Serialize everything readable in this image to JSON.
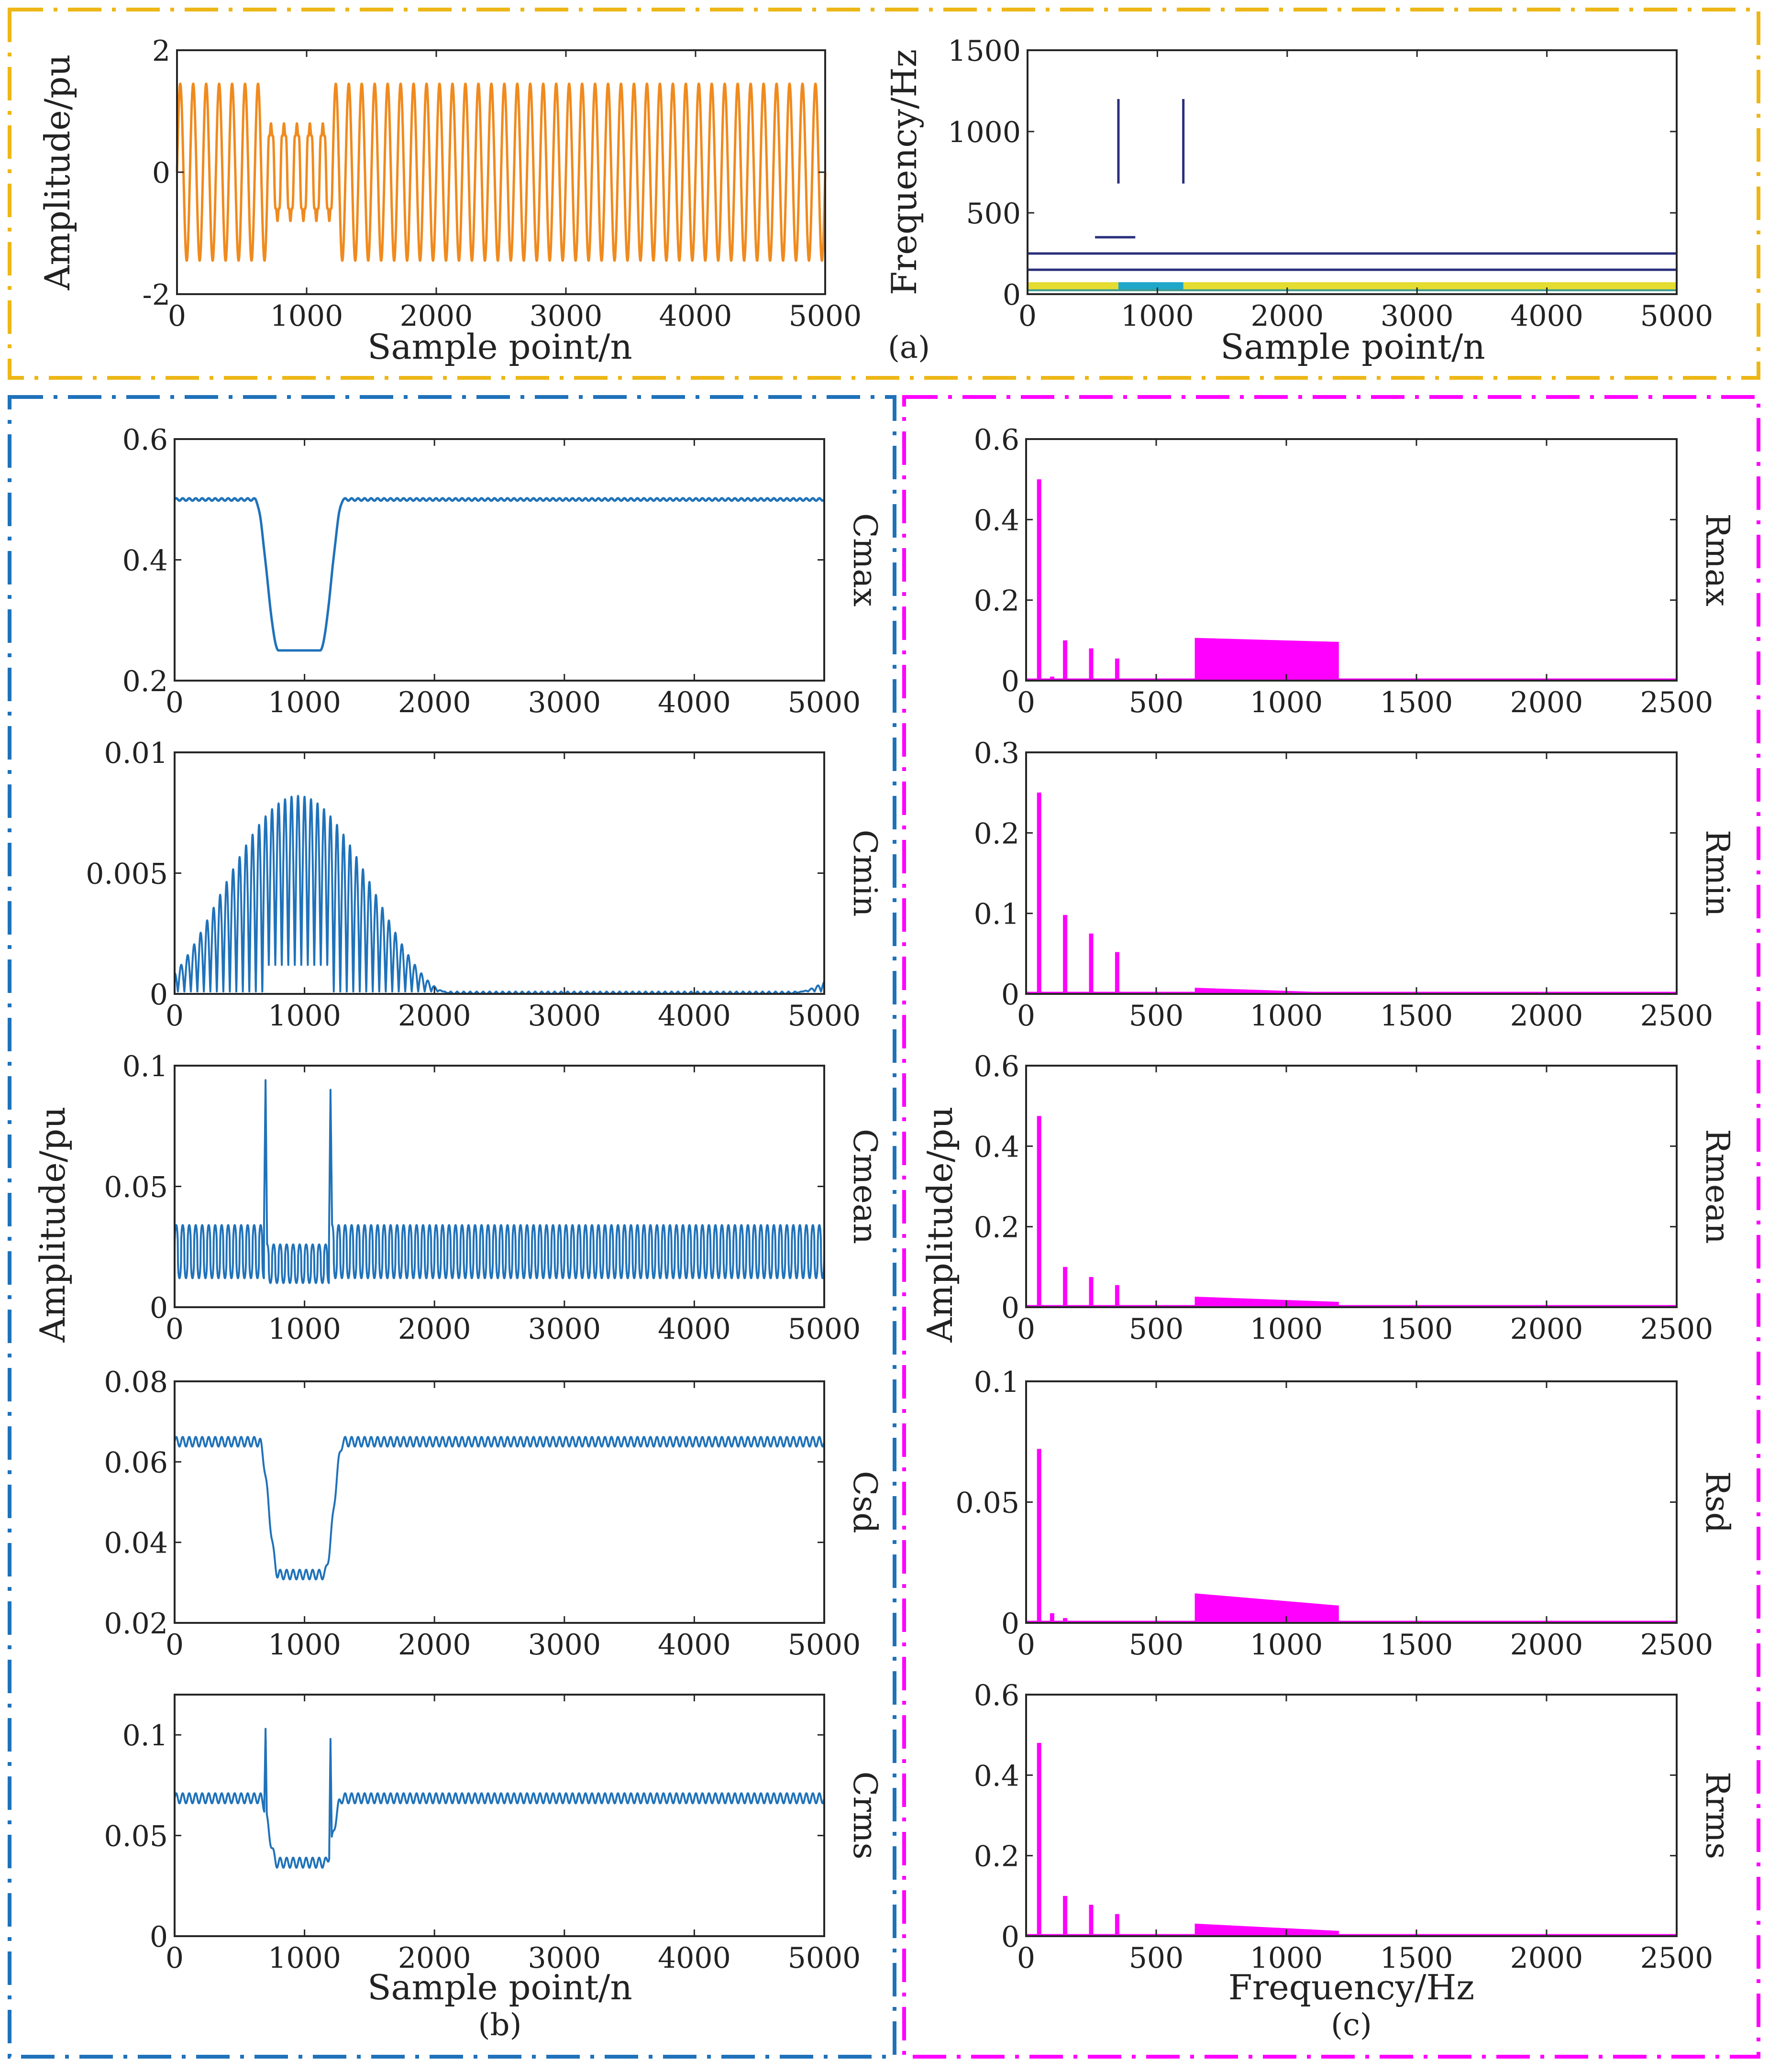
{
  "colors": {
    "orange": "#F08A1D",
    "blue": "#1F72BA",
    "magenta": "#FF00FF",
    "navy": "#2A2E7C",
    "yellow": "#E4DC30",
    "cyan": "#1FA7C9",
    "border_orange": "#EDB716",
    "border_blue": "#1F72BA",
    "border_magenta": "#FF00FF"
  },
  "labels": {
    "panel_a": "(a)",
    "panel_b": "(b)",
    "panel_c": "(c)",
    "amp_pu": "Amplitude/pu",
    "freq_hz": "Frequency/Hz",
    "sample_point": "Sample point/n"
  },
  "chart_data": [
    {
      "id": "a1",
      "type": "line",
      "panel": "(a)",
      "xlabel": "Sample point/n",
      "ylabel": "Amplitude/pu",
      "xlim": [
        0,
        5000
      ],
      "ylim": [
        -2,
        2
      ],
      "xticks": [
        "0",
        "1000",
        "2000",
        "3000",
        "4000",
        "5000"
      ],
      "yticks": [
        "-2",
        "0",
        "2"
      ],
      "series": [
        {
          "name": "signal",
          "description": "50 Hz sine, amplitude 1.45 pu; reduced to about 0.9 pu with harmonic distortion between samples 700 and 1200"
        }
      ]
    },
    {
      "id": "a2",
      "type": "line",
      "panel": "(a)",
      "xlabel": "Sample point/n",
      "ylabel": "Frequency/Hz",
      "xlim": [
        0,
        5000
      ],
      "ylim": [
        0,
        1500
      ],
      "xticks": [
        "0",
        "1000",
        "2000",
        "3000",
        "4000",
        "5000"
      ],
      "yticks": [
        "0",
        "500",
        "1000",
        "1500"
      ],
      "segments": [
        {
          "x": [
            0,
            5000
          ],
          "y": [
            250,
            250
          ]
        },
        {
          "x": [
            0,
            5000
          ],
          "y": [
            150,
            150
          ]
        },
        {
          "x": [
            0,
            5000
          ],
          "y": [
            50,
            50
          ]
        },
        {
          "x": [
            520,
            830
          ],
          "y": [
            350,
            350
          ]
        },
        {
          "x": [
            700,
            700
          ],
          "y": [
            680,
            1200
          ]
        },
        {
          "x": [
            1200,
            1200
          ],
          "y": [
            680,
            1200
          ]
        }
      ]
    },
    {
      "id": "b1",
      "type": "line",
      "panel": "(b)",
      "label": "Cmax",
      "xlim": [
        0,
        5000
      ],
      "ylim": [
        0.2,
        0.6
      ],
      "xticks": [
        "0",
        "1000",
        "2000",
        "3000",
        "4000",
        "5000"
      ],
      "yticks": [
        "0.2",
        "0.4",
        "0.6"
      ],
      "baseline": 0.5,
      "dip_min": 0.25,
      "dip_start": 620,
      "dip_end": 1300
    },
    {
      "id": "b2",
      "type": "line",
      "panel": "(b)",
      "label": "Cmin",
      "xlim": [
        0,
        5000
      ],
      "ylim": [
        0,
        0.01
      ],
      "xticks": [
        "0",
        "1000",
        "2000",
        "3000",
        "4000",
        "5000"
      ],
      "yticks": [
        "0",
        "0.005",
        "0.01"
      ],
      "envelope_peak": 0.0082,
      "envelope_center": 950,
      "envelope_zero_at": 2150
    },
    {
      "id": "b3",
      "type": "line",
      "panel": "(b)",
      "label": "Cmean",
      "xlim": [
        0,
        5000
      ],
      "ylim": [
        0,
        0.1
      ],
      "xticks": [
        "0",
        "1000",
        "2000",
        "3000",
        "4000",
        "5000"
      ],
      "yticks": [
        "0",
        "0.05",
        "0.1"
      ],
      "band_low": 0.012,
      "band_high": 0.034,
      "fault_band_low": 0.01,
      "fault_band_high": 0.026,
      "spikes": [
        {
          "x": 700,
          "y": 0.094
        },
        {
          "x": 1200,
          "y": 0.09
        }
      ]
    },
    {
      "id": "b4",
      "type": "line",
      "panel": "(b)",
      "label": "Csd",
      "xlim": [
        0,
        5000
      ],
      "ylim": [
        0.02,
        0.08
      ],
      "xticks": [
        "0",
        "1000",
        "2000",
        "3000",
        "4000",
        "5000"
      ],
      "yticks": [
        "0.02",
        "0.04",
        "0.06",
        "0.08"
      ],
      "baseline_low": 0.064,
      "baseline_high": 0.066,
      "dip_low": 0.031,
      "dip_high": 0.033
    },
    {
      "id": "b5",
      "type": "line",
      "panel": "(b)",
      "label": "Crms",
      "xlabel": "Sample point/n",
      "xlim": [
        0,
        5000
      ],
      "ylim": [
        0,
        0.12
      ],
      "xticks": [
        "0",
        "1000",
        "2000",
        "3000",
        "4000",
        "5000"
      ],
      "yticks": [
        "0",
        "0.05",
        "0.1"
      ],
      "baseline_low": 0.066,
      "baseline_high": 0.071,
      "dip_low": 0.034,
      "dip_high": 0.039,
      "spikes": [
        {
          "x": 700,
          "y": 0.103
        },
        {
          "x": 1200,
          "y": 0.098
        }
      ]
    },
    {
      "id": "c1",
      "type": "bar",
      "panel": "(c)",
      "label": "Rmax",
      "xlim": [
        0,
        2500
      ],
      "ylim": [
        0,
        0.6
      ],
      "xticks": [
        "0",
        "500",
        "1000",
        "1500",
        "2000",
        "2500"
      ],
      "yticks": [
        "0",
        "0.2",
        "0.4",
        "0.6"
      ],
      "spikes": [
        {
          "f": 50,
          "v": 0.5
        },
        {
          "f": 100,
          "v": 0.01
        },
        {
          "f": 150,
          "v": 0.1
        },
        {
          "f": 250,
          "v": 0.08
        },
        {
          "f": 350,
          "v": 0.055
        }
      ],
      "block": {
        "f0": 650,
        "f1": 1200,
        "v0": 0.105,
        "v1": 0.095
      }
    },
    {
      "id": "c2",
      "type": "bar",
      "panel": "(c)",
      "label": "Rmin",
      "xlim": [
        0,
        2500
      ],
      "ylim": [
        0,
        0.3
      ],
      "xticks": [
        "0",
        "500",
        "1000",
        "1500",
        "2000",
        "2500"
      ],
      "yticks": [
        "0",
        "0.1",
        "0.2",
        "0.3"
      ],
      "spikes": [
        {
          "f": 50,
          "v": 0.25
        },
        {
          "f": 150,
          "v": 0.098
        },
        {
          "f": 250,
          "v": 0.075
        },
        {
          "f": 350,
          "v": 0.052
        }
      ],
      "block": {
        "f0": 650,
        "f1": 1200,
        "v0": 0.007,
        "v1": 0.001
      }
    },
    {
      "id": "c3",
      "type": "bar",
      "panel": "(c)",
      "label": "Rmean",
      "xlim": [
        0,
        2500
      ],
      "ylim": [
        0,
        0.6
      ],
      "xticks": [
        "0",
        "500",
        "1000",
        "1500",
        "2000",
        "2500"
      ],
      "yticks": [
        "0",
        "0.2",
        "0.4",
        "0.6"
      ],
      "spikes": [
        {
          "f": 50,
          "v": 0.475
        },
        {
          "f": 150,
          "v": 0.1
        },
        {
          "f": 250,
          "v": 0.075
        },
        {
          "f": 350,
          "v": 0.055
        }
      ],
      "block": {
        "f0": 650,
        "f1": 1200,
        "v0": 0.025,
        "v1": 0.012
      }
    },
    {
      "id": "c4",
      "type": "bar",
      "panel": "(c)",
      "label": "Rsd",
      "xlim": [
        0,
        2500
      ],
      "ylim": [
        0,
        0.1
      ],
      "xticks": [
        "0",
        "500",
        "1000",
        "1500",
        "2000",
        "2500"
      ],
      "yticks": [
        "0",
        "0.05",
        "0.1"
      ],
      "spikes": [
        {
          "f": 50,
          "v": 0.072
        },
        {
          "f": 100,
          "v": 0.004
        },
        {
          "f": 150,
          "v": 0.002
        }
      ],
      "block": {
        "f0": 650,
        "f1": 1200,
        "v0": 0.012,
        "v1": 0.007
      }
    },
    {
      "id": "c5",
      "type": "bar",
      "panel": "(c)",
      "label": "Rrms",
      "xlabel": "Frequency/Hz",
      "xlim": [
        0,
        2500
      ],
      "ylim": [
        0,
        0.6
      ],
      "xticks": [
        "0",
        "500",
        "1000",
        "1500",
        "2000",
        "2500"
      ],
      "yticks": [
        "0",
        "0.2",
        "0.4",
        "0.6"
      ],
      "spikes": [
        {
          "f": 50,
          "v": 0.48
        },
        {
          "f": 150,
          "v": 0.1
        },
        {
          "f": 250,
          "v": 0.078
        },
        {
          "f": 350,
          "v": 0.055
        }
      ],
      "block": {
        "f0": 650,
        "f1": 1200,
        "v0": 0.03,
        "v1": 0.012
      }
    }
  ]
}
